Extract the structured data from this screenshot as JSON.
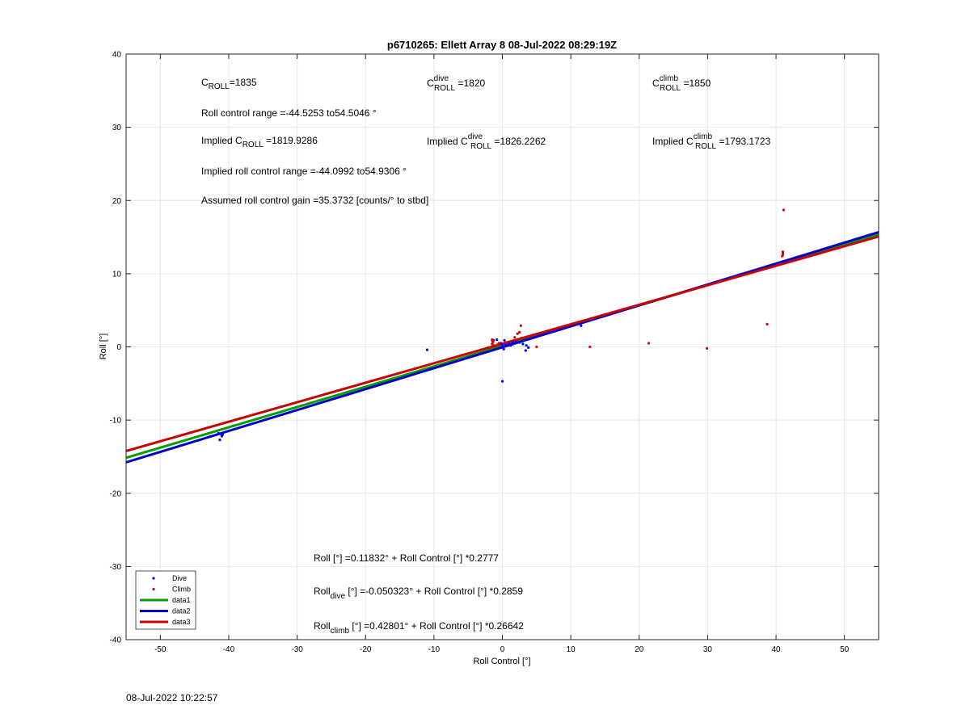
{
  "footer_timestamp": "08-Jul-2022 10:22:57",
  "chart_data": {
    "type": "scatter",
    "title": "p6710265: Ellett Array 8 08-Jul-2022 08:29:19Z",
    "xlabel": "Roll Control [°]",
    "ylabel": "Roll [°]",
    "xlim": [
      -55,
      55
    ],
    "ylim": [
      -40,
      40
    ],
    "xticks": [
      -50,
      -40,
      -30,
      -20,
      -10,
      0,
      10,
      20,
      30,
      40,
      50
    ],
    "yticks": [
      -40,
      -30,
      -20,
      -10,
      0,
      10,
      20,
      30,
      40
    ],
    "grid": true,
    "legend_location": "bottom-left",
    "series": [
      {
        "name": "Dive",
        "kind": "points",
        "color": "#0000ff",
        "points": [
          [
            -41.2,
            -11.9
          ],
          [
            -41.0,
            -12.2
          ],
          [
            -41.3,
            -12.7
          ],
          [
            -41.5,
            -11.8
          ],
          [
            -40.9,
            -12.0
          ],
          [
            -11.0,
            -0.4
          ],
          [
            -1.3,
            0.9
          ],
          [
            -0.8,
            1.0
          ],
          [
            -0.2,
            0.5
          ],
          [
            0.0,
            0.2
          ],
          [
            0.2,
            -0.3
          ],
          [
            0.0,
            -4.7
          ],
          [
            0.5,
            0.3
          ],
          [
            1.0,
            0.4
          ],
          [
            1.5,
            0.6
          ],
          [
            2.0,
            0.7
          ],
          [
            2.5,
            0.6
          ],
          [
            3.0,
            0.4
          ],
          [
            3.5,
            0.2
          ],
          [
            3.8,
            -0.1
          ],
          [
            3.4,
            -0.5
          ],
          [
            11.5,
            2.9
          ],
          [
            0.3,
            0.9
          ],
          [
            1.2,
            0.2
          ]
        ]
      },
      {
        "name": "Climb",
        "kind": "points",
        "color": "#dd0000",
        "points": [
          [
            -1.5,
            0.4
          ],
          [
            -1.4,
            0.8
          ],
          [
            -1.5,
            0.9
          ],
          [
            -1.3,
            0.2
          ],
          [
            -1.4,
            0.6
          ],
          [
            -1.5,
            1.0
          ],
          [
            -0.5,
            0.5
          ],
          [
            0.5,
            0.6
          ],
          [
            1.8,
            1.3
          ],
          [
            2.2,
            1.8
          ],
          [
            2.5,
            2.0
          ],
          [
            2.7,
            2.9
          ],
          [
            2.8,
            1.2
          ],
          [
            5.0,
            0.0
          ],
          [
            12.8,
            0.0
          ],
          [
            21.4,
            0.5
          ],
          [
            29.9,
            -0.2
          ],
          [
            38.7,
            3.1
          ],
          [
            41.0,
            12.8
          ],
          [
            41.0,
            12.6
          ],
          [
            41.0,
            13.0
          ],
          [
            41.1,
            18.7
          ],
          [
            40.9,
            12.4
          ],
          [
            -0.7,
            0.3
          ]
        ]
      },
      {
        "name": "data1",
        "kind": "line",
        "color": "#00a000",
        "intercept": 0.11832,
        "slope": 0.2777
      },
      {
        "name": "data2",
        "kind": "line",
        "color": "#0000cc",
        "intercept": -0.050323,
        "slope": 0.2859
      },
      {
        "name": "data3",
        "kind": "line",
        "color": "#cc0000",
        "intercept": 0.42801,
        "slope": 0.26642
      }
    ],
    "annotations": {
      "c_roll": "C",
      "c_roll_sub": "ROLL",
      "c_roll_val": "=1835",
      "c_dive": "C",
      "c_dive_sup": "dive",
      "c_dive_sub": "ROLL",
      "c_dive_val": " =1820",
      "c_climb": "C",
      "c_climb_sup": "climb",
      "c_climb_sub": "ROLL",
      "c_climb_val": " =1850",
      "roll_range": "Roll control range =-44.5253 to54.5046 °",
      "implied_c_prefix": "Implied C",
      "implied_c_sub": "ROLL",
      "implied_c_val": " =1819.9286",
      "implied_dive_prefix": "Implied C",
      "implied_dive_sup": "dive",
      "implied_dive_sub": "ROLL",
      "implied_dive_val": " =1826.2262",
      "implied_climb_prefix": "Implied C",
      "implied_climb_sup": "climb",
      "implied_climb_sub": "ROLL",
      "implied_climb_val": " =1793.1723",
      "implied_range": "Implied roll control range =-44.0992 to54.9306 °",
      "gain": "Assumed roll control gain =35.3732 [counts/° to stbd]",
      "fit_all": "Roll [°] =0.11832° + Roll Control [°] *0.2777",
      "fit_dive_prefix": "Roll",
      "fit_dive_sub": "dive",
      "fit_dive_rest": " [°] =-0.050323° + Roll Control [°] *0.2859",
      "fit_climb_prefix": "Roll",
      "fit_climb_sub": "climb",
      "fit_climb_rest": " [°] =0.42801° + Roll Control [°] *0.26642"
    }
  }
}
